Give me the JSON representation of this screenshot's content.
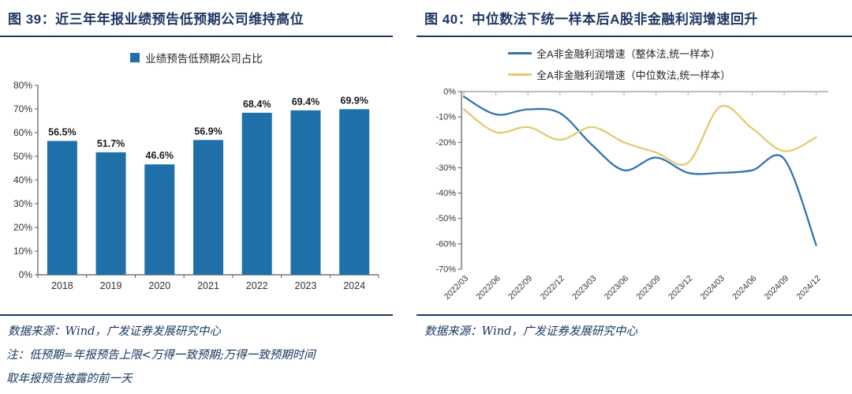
{
  "page": {
    "background": "#ffffff",
    "accent_navy": "#1F3864"
  },
  "figure_left": {
    "title": "图 39：近三年年报业绩预告低预期公司维持高位",
    "legend": "业绩预告低预期公司占比",
    "source": "数据来源：Wind，广发证券发展研究中心",
    "note_line1": "注：低预期=年报预告上限<万得一致预期;万得一致预期时间",
    "note_line2": "取年报预告披露的前一天",
    "colors": {
      "bar": "#1F6FA8"
    }
  },
  "figure_right": {
    "title": "图 40：中位数法下统一样本后A股非金融利润增速回升",
    "legend": [
      {
        "label": "全A非金融利润增速（整体法,统一样本）",
        "color": "#2E74B5"
      },
      {
        "label": "全A非金融利润增速（中位数法,统一样本）",
        "color": "#E6C96F"
      }
    ],
    "source": "数据来源：Wind，广发证券发展研究中心"
  },
  "chart_data": [
    {
      "type": "bar",
      "title": "业绩预告低预期公司占比",
      "categories": [
        "2018",
        "2019",
        "2020",
        "2021",
        "2022",
        "2023",
        "2024"
      ],
      "values": [
        56.5,
        51.7,
        46.6,
        56.9,
        68.4,
        69.4,
        69.9
      ],
      "value_labels": [
        "56.5%",
        "51.7%",
        "46.6%",
        "56.9%",
        "68.4%",
        "69.4%",
        "69.9%"
      ],
      "xlabel": "",
      "ylabel": "",
      "ylim": [
        0,
        80
      ],
      "ytick_step": 10,
      "ytick_labels": [
        "0%",
        "10%",
        "20%",
        "30%",
        "40%",
        "50%",
        "60%",
        "70%",
        "80%"
      ],
      "bar_color": "#1F6FA8",
      "grid": false,
      "legend_position": "top"
    },
    {
      "type": "line",
      "x": [
        "2022/03",
        "2022/06",
        "2022/09",
        "2022/12",
        "2023/03",
        "2023/06",
        "2023/09",
        "2023/12",
        "2024/03",
        "2024/06",
        "2024/09",
        "2024/12"
      ],
      "series": [
        {
          "name": "全A非金融利润增速（整体法,统一样本）",
          "color": "#2E74B5",
          "values": [
            -2,
            -9,
            -7,
            -8.5,
            -21,
            -31,
            -26,
            -32,
            -32,
            -31,
            -26.5,
            -60.5
          ]
        },
        {
          "name": "全A非金融利润增速（中位数法,统一样本）",
          "color": "#E6C96F",
          "values": [
            -7,
            -16,
            -14,
            -19,
            -14,
            -20,
            -24,
            -28,
            -6,
            -14.5,
            -23.5,
            -18
          ]
        }
      ],
      "xlabel": "",
      "ylabel": "",
      "ylim": [
        -70,
        0
      ],
      "ytick_step": 10,
      "ytick_labels": [
        "0%",
        "-10%",
        "-20%",
        "-30%",
        "-40%",
        "-50%",
        "-60%",
        "-70%"
      ],
      "grid": false,
      "legend_position": "top",
      "smooth": true
    }
  ]
}
